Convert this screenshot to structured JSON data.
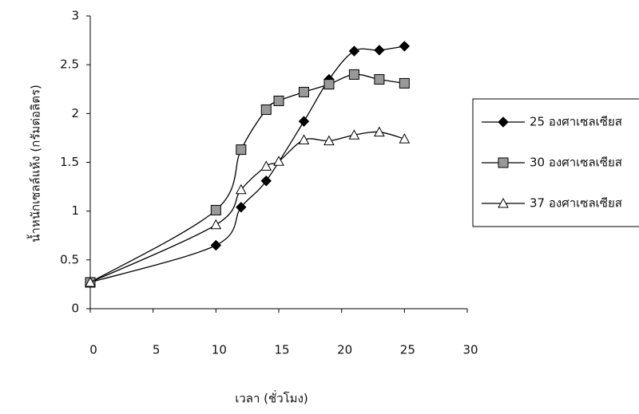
{
  "chart_data": {
    "type": "line",
    "x_label": "เวลา  (ชั่วโมง)",
    "y_label": "น้ำหนักเซลล์แห้ง  (กรัมต่อลิตร)",
    "x": [
      0,
      10,
      12,
      14,
      15,
      17,
      19,
      21,
      23,
      25
    ],
    "xlim": [
      0,
      30
    ],
    "xticks": [
      0,
      5,
      10,
      15,
      20,
      25,
      30
    ],
    "ylim": [
      0,
      3
    ],
    "yticks": [
      0,
      0.5,
      1,
      1.5,
      2,
      2.5,
      3
    ],
    "smooth": true,
    "series": [
      {
        "name": "25 องศาเซลเซียส",
        "color": "#000000",
        "marker": "diamond",
        "values": [
          0.27,
          0.65,
          1.04,
          1.31,
          null,
          1.92,
          2.35,
          2.64,
          2.65,
          2.69
        ]
      },
      {
        "name": "30 องศาเซลเซียส",
        "color": "#000000",
        "marker": "square",
        "values": [
          0.27,
          1.01,
          1.63,
          2.04,
          2.13,
          2.22,
          2.3,
          2.4,
          2.35,
          2.31
        ]
      },
      {
        "name": "37 องศาเซลเซียส",
        "color": "#000000",
        "marker": "triangle",
        "values": [
          0.27,
          0.86,
          1.22,
          1.46,
          1.51,
          1.73,
          1.72,
          1.78,
          1.81,
          1.74
        ]
      }
    ]
  }
}
